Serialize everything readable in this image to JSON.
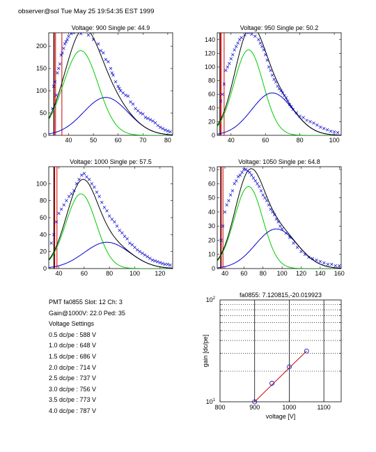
{
  "header": {
    "text": "observer@sol  Tue May 25 19:54:35 EST 1999"
  },
  "info": {
    "lines": [
      "PMT fa0855 Slot: 12 Ch: 3",
      "Gain@1000V: 22.0 Ped: 35",
      "Voltage Settings",
      "0.5 dc/pe : 588 V",
      "1.0 dc/pe : 648 V",
      "1.5 dc/pe : 686 V",
      "2.0 dc/pe : 714 V",
      "2.5 dc/pe : 737 V",
      "3.0 dc/pe : 756 V",
      "3.5 dc/pe : 773 V",
      "4.0 dc/pe : 787 V"
    ]
  },
  "colors": {
    "data": "#0000cc",
    "total": "#000000",
    "pe1": "#00cc00",
    "pe2": "#0000cc",
    "ped": "#cc0000",
    "fit": "#cc0000"
  },
  "chart_data": [
    {
      "type": "scatter",
      "title": "Voltage: 900 Single pe: 44.9",
      "xlim": [
        32,
        82
      ],
      "ylim": [
        0,
        230
      ],
      "xticks": [
        40,
        50,
        60,
        70,
        80
      ],
      "yticks": [
        0,
        50,
        100,
        150,
        200
      ],
      "ped_x": 34.5,
      "ped_top": 230,
      "ped_tail": 37.3,
      "pe1": {
        "amp": 190,
        "mu": 44.9,
        "sigma": 7
      },
      "pe2": {
        "amp": 85,
        "mu": 55,
        "sigma": 9
      },
      "points": [
        [
          33.5,
          60
        ],
        [
          34,
          110
        ],
        [
          34.5,
          120
        ],
        [
          35,
          90
        ],
        [
          35.5,
          140
        ],
        [
          36,
          150
        ],
        [
          36.5,
          160
        ],
        [
          37,
          180
        ],
        [
          37.5,
          185
        ],
        [
          38,
          195
        ],
        [
          38.5,
          205
        ],
        [
          39,
          210
        ],
        [
          39.5,
          215
        ],
        [
          40,
          222
        ],
        [
          41,
          228
        ],
        [
          42,
          230
        ],
        [
          45,
          228
        ],
        [
          48,
          225
        ],
        [
          50,
          215
        ],
        [
          52,
          205
        ],
        [
          53,
          190
        ],
        [
          54,
          185
        ],
        [
          55,
          170
        ],
        [
          56,
          165
        ],
        [
          57,
          150
        ],
        [
          57.5,
          140
        ],
        [
          58,
          135
        ],
        [
          59,
          120
        ],
        [
          60,
          110
        ],
        [
          60.5,
          105
        ],
        [
          61,
          100
        ],
        [
          62,
          95
        ],
        [
          63,
          90
        ],
        [
          64,
          88
        ],
        [
          65,
          75
        ],
        [
          66,
          70
        ],
        [
          67,
          60
        ],
        [
          68,
          55
        ],
        [
          69,
          50
        ],
        [
          70,
          48
        ],
        [
          71,
          40
        ],
        [
          72,
          38
        ],
        [
          73,
          35
        ],
        [
          74,
          32
        ],
        [
          75,
          28
        ],
        [
          76,
          22
        ],
        [
          77,
          18
        ],
        [
          78,
          15
        ],
        [
          79,
          12
        ],
        [
          80,
          10
        ],
        [
          81,
          8
        ]
      ]
    },
    {
      "type": "scatter",
      "title": "Voltage: 950 Single pe: 50.2",
      "xlim": [
        32,
        104
      ],
      "ylim": [
        0,
        150
      ],
      "xticks": [
        40,
        60,
        80,
        100
      ],
      "yticks": [
        0,
        20,
        40,
        60,
        80,
        100,
        120,
        140
      ],
      "ped_x": 34,
      "ped_top": 150,
      "ped_tail": 36,
      "pe1": {
        "amp": 125,
        "mu": 50.2,
        "sigma": 8.5
      },
      "pe2": {
        "amp": 62,
        "mu": 64,
        "sigma": 12
      },
      "points": [
        [
          34,
          50
        ],
        [
          35,
          60
        ],
        [
          36,
          75
        ],
        [
          37,
          95
        ],
        [
          38,
          100
        ],
        [
          39,
          105
        ],
        [
          40,
          112
        ],
        [
          41,
          118
        ],
        [
          42,
          125
        ],
        [
          43,
          130
        ],
        [
          44,
          135
        ],
        [
          45,
          140
        ],
        [
          46,
          143
        ],
        [
          48,
          147
        ],
        [
          50,
          150
        ],
        [
          52,
          148
        ],
        [
          54,
          145
        ],
        [
          56,
          140
        ],
        [
          57,
          135
        ],
        [
          58,
          130
        ],
        [
          59,
          125
        ],
        [
          60,
          118
        ],
        [
          61,
          110
        ],
        [
          62,
          100
        ],
        [
          63,
          95
        ],
        [
          64,
          88
        ],
        [
          65,
          82
        ],
        [
          66,
          78
        ],
        [
          67,
          72
        ],
        [
          68,
          68
        ],
        [
          69,
          65
        ],
        [
          70,
          62
        ],
        [
          71,
          58
        ],
        [
          72,
          55
        ],
        [
          73,
          50
        ],
        [
          74,
          45
        ],
        [
          75,
          42
        ],
        [
          76,
          38
        ],
        [
          78,
          33
        ],
        [
          80,
          28
        ],
        [
          82,
          26
        ],
        [
          84,
          22
        ],
        [
          86,
          20
        ],
        [
          88,
          18
        ],
        [
          90,
          15
        ],
        [
          92,
          12
        ],
        [
          94,
          10
        ],
        [
          96,
          8
        ],
        [
          98,
          6
        ],
        [
          100,
          5
        ],
        [
          102,
          4
        ]
      ]
    },
    {
      "type": "scatter",
      "title": "Voltage: 1000 Single pe: 57.5",
      "xlim": [
        32,
        130
      ],
      "ylim": [
        0,
        120
      ],
      "xticks": [
        40,
        60,
        80,
        100,
        120
      ],
      "yticks": [
        0,
        20,
        40,
        60,
        80,
        100
      ],
      "ped_x": 36.5,
      "ped_top": 120,
      "ped_tail": 38.5,
      "pe1": {
        "amp": 88,
        "mu": 57.5,
        "sigma": 12
      },
      "pe2": {
        "amp": 31,
        "mu": 78,
        "sigma": 18
      },
      "points": [
        [
          34,
          30
        ],
        [
          36,
          40
        ],
        [
          38,
          55
        ],
        [
          40,
          65
        ],
        [
          42,
          70
        ],
        [
          44,
          75
        ],
        [
          46,
          80
        ],
        [
          48,
          85
        ],
        [
          50,
          88
        ],
        [
          52,
          92
        ],
        [
          54,
          100
        ],
        [
          56,
          105
        ],
        [
          58,
          110
        ],
        [
          60,
          112
        ],
        [
          62,
          108
        ],
        [
          64,
          105
        ],
        [
          66,
          100
        ],
        [
          68,
          96
        ],
        [
          70,
          90
        ],
        [
          72,
          85
        ],
        [
          74,
          78
        ],
        [
          76,
          72
        ],
        [
          78,
          68
        ],
        [
          80,
          62
        ],
        [
          82,
          58
        ],
        [
          84,
          55
        ],
        [
          86,
          50
        ],
        [
          88,
          45
        ],
        [
          90,
          42
        ],
        [
          92,
          38
        ],
        [
          94,
          35
        ],
        [
          96,
          30
        ],
        [
          98,
          28
        ],
        [
          100,
          25
        ],
        [
          102,
          22
        ],
        [
          104,
          20
        ],
        [
          106,
          18
        ],
        [
          108,
          16
        ],
        [
          110,
          14
        ],
        [
          112,
          12
        ],
        [
          114,
          10
        ],
        [
          116,
          9
        ],
        [
          118,
          8
        ],
        [
          120,
          7
        ],
        [
          122,
          6
        ],
        [
          124,
          5
        ],
        [
          126,
          5
        ],
        [
          128,
          4
        ]
      ]
    },
    {
      "type": "scatter",
      "title": "Voltage: 1050 Single pe: 64.8",
      "xlim": [
        32,
        162
      ],
      "ylim": [
        0,
        72
      ],
      "xticks": [
        40,
        60,
        80,
        100,
        120,
        140,
        160
      ],
      "yticks": [
        0,
        10,
        20,
        30,
        40,
        50,
        60,
        70
      ],
      "ped_x": 36,
      "ped_top": 72,
      "ped_tail": 38,
      "pe1": {
        "amp": 58,
        "mu": 64.8,
        "sigma": 15
      },
      "pe2": {
        "amp": 28,
        "mu": 94,
        "sigma": 22
      },
      "points": [
        [
          36,
          20
        ],
        [
          38,
          30
        ],
        [
          40,
          40
        ],
        [
          42,
          45
        ],
        [
          44,
          48
        ],
        [
          46,
          52
        ],
        [
          48,
          55
        ],
        [
          50,
          60
        ],
        [
          52,
          62
        ],
        [
          54,
          65
        ],
        [
          56,
          66
        ],
        [
          58,
          68
        ],
        [
          60,
          70
        ],
        [
          62,
          70
        ],
        [
          64,
          69
        ],
        [
          66,
          68
        ],
        [
          68,
          66
        ],
        [
          70,
          64
        ],
        [
          72,
          62
        ],
        [
          74,
          60
        ],
        [
          76,
          58
        ],
        [
          78,
          55
        ],
        [
          80,
          52
        ],
        [
          82,
          50
        ],
        [
          84,
          48
        ],
        [
          86,
          45
        ],
        [
          88,
          42
        ],
        [
          90,
          40
        ],
        [
          92,
          38
        ],
        [
          94,
          35
        ],
        [
          96,
          33
        ],
        [
          98,
          30
        ],
        [
          100,
          28
        ],
        [
          104,
          25
        ],
        [
          108,
          22
        ],
        [
          112,
          18
        ],
        [
          116,
          15
        ],
        [
          120,
          12
        ],
        [
          124,
          10
        ],
        [
          128,
          8
        ],
        [
          132,
          7
        ],
        [
          136,
          6
        ],
        [
          140,
          5
        ],
        [
          144,
          4
        ],
        [
          148,
          3
        ],
        [
          152,
          3
        ],
        [
          156,
          2
        ],
        [
          160,
          2
        ]
      ]
    },
    {
      "type": "line",
      "title": "fa0855: 7.120815,-20.019923",
      "xlabel": "voltage [V]",
      "ylabel": "gain [dc/pe]",
      "xlim": [
        800,
        1150
      ],
      "ylim_log": [
        10,
        100
      ],
      "xticks": [
        800,
        900,
        1000,
        1100
      ],
      "yticks_major": [
        10,
        100
      ],
      "yticks_minor": [
        20,
        30,
        40,
        50,
        60,
        70,
        80,
        90
      ],
      "vlines": [
        900,
        1000,
        1100
      ],
      "points": [
        [
          900,
          10
        ],
        [
          950,
          15.2
        ],
        [
          1000,
          22.0
        ],
        [
          1050,
          31.5
        ]
      ],
      "fit": [
        [
          900,
          10
        ],
        [
          1050,
          31.5
        ]
      ]
    }
  ]
}
